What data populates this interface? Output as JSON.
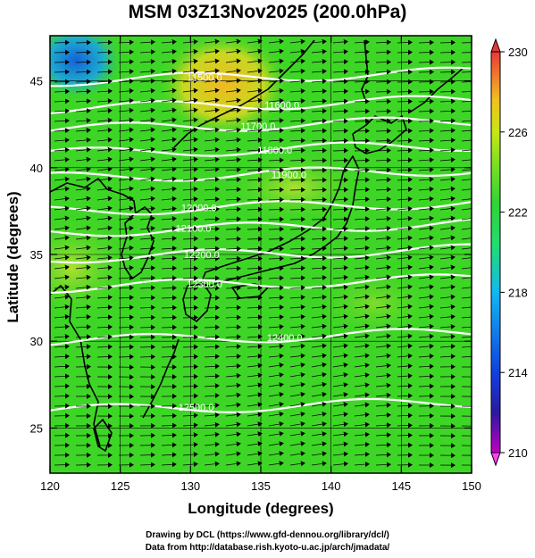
{
  "title": "MSM 03Z13Nov2025 (200.0hPa)",
  "map": {
    "xlabel": "Longitude (degrees)",
    "ylabel": "Latitude  (degrees)",
    "lon_ticks": [
      "120",
      "125",
      "130",
      "135",
      "140",
      "145",
      "150"
    ],
    "lat_ticks": [
      "25",
      "30",
      "35",
      "40",
      "45"
    ],
    "lon_range": [
      120,
      150
    ],
    "lat_range": [
      22.4,
      47.6
    ],
    "contour_labels": [
      {
        "text": "11500.0",
        "lon": 131.0,
        "lat": 45.0
      },
      {
        "text": "11600.0",
        "lon": 136.5,
        "lat": 43.4
      },
      {
        "text": "11700.0",
        "lon": 134.8,
        "lat": 42.2
      },
      {
        "text": "11800.0",
        "lon": 136.0,
        "lat": 40.8
      },
      {
        "text": "11900.0",
        "lon": 137.0,
        "lat": 39.4
      },
      {
        "text": "12000.0",
        "lon": 130.6,
        "lat": 37.5
      },
      {
        "text": "12100.0",
        "lon": 130.2,
        "lat": 36.3
      },
      {
        "text": "12200.0",
        "lon": 130.8,
        "lat": 34.8
      },
      {
        "text": "12300.0",
        "lon": 131.0,
        "lat": 33.1
      },
      {
        "text": "12400.0",
        "lon": 136.7,
        "lat": 30.0
      },
      {
        "text": "12500.0",
        "lon": 130.4,
        "lat": 26.0
      }
    ]
  },
  "colorbar": {
    "min": 210,
    "max": 230,
    "tick_labels": [
      "230",
      "226",
      "222",
      "218",
      "214",
      "210"
    ],
    "colors": [
      "#c000c0",
      "#2a1aa0",
      "#1040e0",
      "#12b8f0",
      "#22dd70",
      "#2fd336",
      "#7be020",
      "#c8e614",
      "#f0c020",
      "#f07030",
      "#e83838"
    ]
  },
  "field": {
    "base_color": "#3ed626",
    "cold_color": "#1560d8",
    "warm_color": "#e8d818",
    "yellow_color": "#b4e030"
  },
  "credits": {
    "line1": "Drawing by DCL (https://www.gfd-dennou.org/library/dcl/)",
    "line2": "Data from http://database.rish.kyoto-u.ac.jp/arch/jmadata/"
  }
}
